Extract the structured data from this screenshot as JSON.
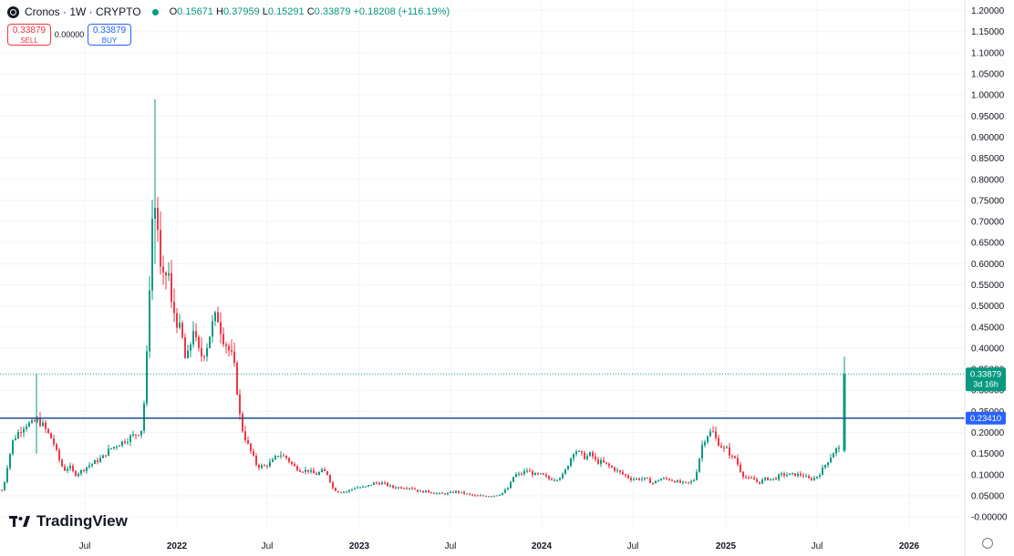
{
  "header": {
    "symbol": "Cronos · 1W · CRYPTO",
    "ohlc": {
      "open_label": "O",
      "open": "0.15671",
      "high_label": "H",
      "high": "0.37959",
      "low_label": "L",
      "low": "0.15291",
      "close_label": "C",
      "close": "0.33879",
      "change": "+0.18208 (+116.19%)"
    }
  },
  "trade": {
    "sell_price": "0.33879",
    "sell_label": "SELL",
    "spread": "0.00000",
    "buy_price": "0.33879",
    "buy_label": "BUY"
  },
  "brand": "TradingView",
  "colors": {
    "up": "#089981",
    "down": "#f23645",
    "hline": "#1e4f8c",
    "grid": "#f0f3fa"
  },
  "chart_data": {
    "type": "candlestick",
    "title": "",
    "xlabel": "",
    "ylabel": "",
    "ylim": [
      -0.015,
      1.21
    ],
    "x_ticks": [
      "Jul",
      "2022",
      "Jul",
      "2023",
      "Jul",
      "2024",
      "Jul",
      "2025",
      "Jul",
      "2026"
    ],
    "y_ticks": [
      "1.20000",
      "1.15000",
      "1.10000",
      "1.05000",
      "1.00000",
      "0.95000",
      "0.90000",
      "0.85000",
      "0.80000",
      "0.75000",
      "0.70000",
      "0.65000",
      "0.60000",
      "0.55000",
      "0.50000",
      "0.45000",
      "0.40000",
      "0.35000",
      "0.30000",
      "0.25000",
      "0.20000",
      "0.15000",
      "0.10000",
      "0.05000",
      "-0.00000"
    ],
    "y_tick_values": [
      1.2,
      1.15,
      1.1,
      1.05,
      1.0,
      0.95,
      0.9,
      0.85,
      0.8,
      0.75,
      0.7,
      0.65,
      0.6,
      0.55,
      0.5,
      0.45,
      0.4,
      0.35,
      0.3,
      0.25,
      0.2,
      0.15,
      0.1,
      0.05,
      0.0
    ],
    "last_price": {
      "value": 0.33879,
      "label": "0.33879",
      "countdown": "3d 16h"
    },
    "horizontal_line": {
      "value": 0.2341,
      "label": "0.23410"
    },
    "last_candle": {
      "open": 0.15671,
      "high": 0.37959,
      "low": 0.15291,
      "close": 0.33879
    },
    "price_path": [
      [
        0,
        0.07
      ],
      [
        3,
        0.06
      ],
      [
        8,
        0.12
      ],
      [
        14,
        0.18
      ],
      [
        20,
        0.2
      ],
      [
        28,
        0.22
      ],
      [
        35,
        0.22
      ],
      [
        40,
        0.23
      ],
      [
        46,
        0.22
      ],
      [
        52,
        0.2
      ],
      [
        58,
        0.18
      ],
      [
        64,
        0.14
      ],
      [
        70,
        0.11
      ],
      [
        76,
        0.12
      ],
      [
        82,
        0.1
      ],
      [
        90,
        0.11
      ],
      [
        96,
        0.12
      ],
      [
        104,
        0.13
      ],
      [
        112,
        0.14
      ],
      [
        120,
        0.16
      ],
      [
        128,
        0.17
      ],
      [
        136,
        0.18
      ],
      [
        144,
        0.19
      ],
      [
        152,
        0.2
      ],
      [
        156,
        0.21
      ],
      [
        159,
        0.3
      ],
      [
        162,
        0.42
      ],
      [
        165,
        0.62
      ],
      [
        168,
        0.75
      ],
      [
        172,
        0.72
      ],
      [
        176,
        0.58
      ],
      [
        180,
        0.55
      ],
      [
        184,
        0.6
      ],
      [
        188,
        0.5
      ],
      [
        192,
        0.48
      ],
      [
        196,
        0.45
      ],
      [
        200,
        0.42
      ],
      [
        204,
        0.36
      ],
      [
        208,
        0.4
      ],
      [
        212,
        0.45
      ],
      [
        216,
        0.4
      ],
      [
        220,
        0.38
      ],
      [
        226,
        0.4
      ],
      [
        232,
        0.45
      ],
      [
        238,
        0.48
      ],
      [
        244,
        0.43
      ],
      [
        250,
        0.4
      ],
      [
        256,
        0.37
      ],
      [
        260,
        0.3
      ],
      [
        264,
        0.22
      ],
      [
        270,
        0.18
      ],
      [
        276,
        0.15
      ],
      [
        282,
        0.12
      ],
      [
        290,
        0.12
      ],
      [
        298,
        0.13
      ],
      [
        306,
        0.15
      ],
      [
        314,
        0.14
      ],
      [
        322,
        0.12
      ],
      [
        330,
        0.11
      ],
      [
        338,
        0.11
      ],
      [
        346,
        0.1
      ],
      [
        354,
        0.11
      ],
      [
        360,
        0.1
      ],
      [
        364,
        0.07
      ],
      [
        370,
        0.06
      ],
      [
        380,
        0.06
      ],
      [
        390,
        0.07
      ],
      [
        400,
        0.07
      ],
      [
        410,
        0.08
      ],
      [
        420,
        0.08
      ],
      [
        430,
        0.07
      ],
      [
        440,
        0.07
      ],
      [
        450,
        0.07
      ],
      [
        460,
        0.06
      ],
      [
        470,
        0.06
      ],
      [
        480,
        0.055
      ],
      [
        490,
        0.055
      ],
      [
        500,
        0.06
      ],
      [
        510,
        0.055
      ],
      [
        520,
        0.05
      ],
      [
        530,
        0.05
      ],
      [
        540,
        0.05
      ],
      [
        550,
        0.055
      ],
      [
        558,
        0.07
      ],
      [
        564,
        0.1
      ],
      [
        570,
        0.1
      ],
      [
        578,
        0.11
      ],
      [
        586,
        0.1
      ],
      [
        594,
        0.1
      ],
      [
        602,
        0.09
      ],
      [
        610,
        0.09
      ],
      [
        618,
        0.1
      ],
      [
        624,
        0.13
      ],
      [
        630,
        0.16
      ],
      [
        636,
        0.15
      ],
      [
        642,
        0.14
      ],
      [
        648,
        0.15
      ],
      [
        654,
        0.13
      ],
      [
        660,
        0.13
      ],
      [
        668,
        0.12
      ],
      [
        676,
        0.11
      ],
      [
        684,
        0.1
      ],
      [
        692,
        0.09
      ],
      [
        700,
        0.09
      ],
      [
        708,
        0.09
      ],
      [
        716,
        0.08
      ],
      [
        724,
        0.09
      ],
      [
        732,
        0.09
      ],
      [
        740,
        0.085
      ],
      [
        748,
        0.08
      ],
      [
        756,
        0.08
      ],
      [
        762,
        0.09
      ],
      [
        766,
        0.13
      ],
      [
        770,
        0.17
      ],
      [
        774,
        0.19
      ],
      [
        778,
        0.2
      ],
      [
        782,
        0.2
      ],
      [
        786,
        0.18
      ],
      [
        790,
        0.17
      ],
      [
        794,
        0.16
      ],
      [
        798,
        0.16
      ],
      [
        802,
        0.14
      ],
      [
        806,
        0.14
      ],
      [
        810,
        0.12
      ],
      [
        814,
        0.1
      ],
      [
        820,
        0.09
      ],
      [
        826,
        0.09
      ],
      [
        832,
        0.08
      ],
      [
        838,
        0.09
      ],
      [
        844,
        0.09
      ],
      [
        850,
        0.09
      ],
      [
        856,
        0.1
      ],
      [
        862,
        0.1
      ],
      [
        868,
        0.1
      ],
      [
        874,
        0.1
      ],
      [
        880,
        0.1
      ],
      [
        886,
        0.09
      ],
      [
        892,
        0.09
      ],
      [
        898,
        0.1
      ],
      [
        904,
        0.12
      ],
      [
        910,
        0.14
      ],
      [
        916,
        0.16
      ],
      [
        922,
        0.16
      ]
    ]
  }
}
